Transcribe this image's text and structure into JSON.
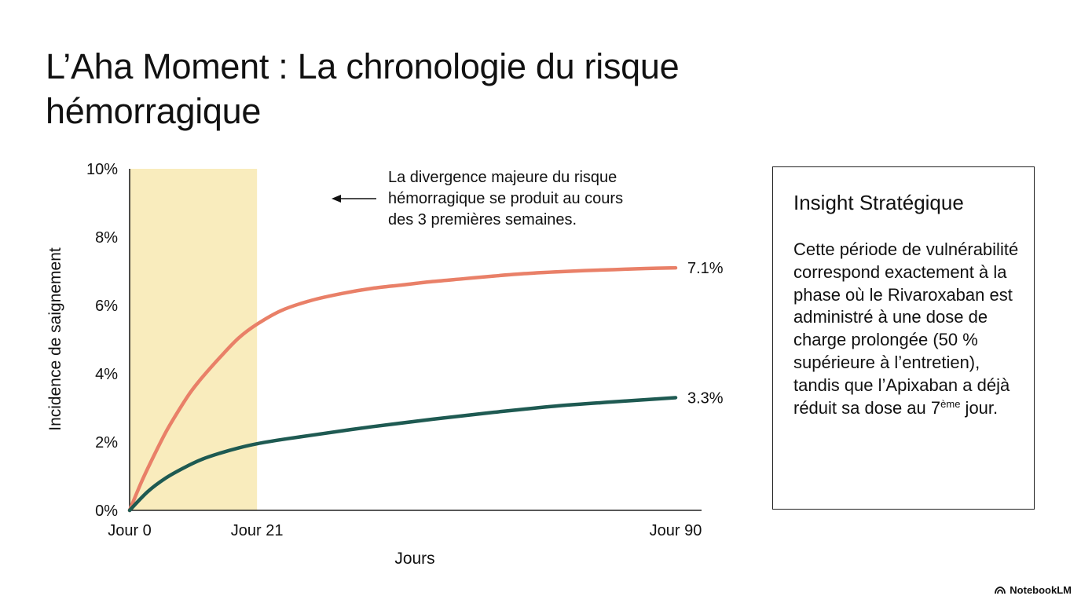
{
  "title": "L’Aha Moment : La chronologie du risque hémorragique",
  "chart_data": {
    "type": "line",
    "xlabel": "Jours",
    "ylabel": "Incidence de saignement",
    "xlim": [
      0,
      90
    ],
    "ylim": [
      0,
      10
    ],
    "x_ticks": [
      {
        "value": 0,
        "label": "Jour 0"
      },
      {
        "value": 21,
        "label": "Jour 21"
      },
      {
        "value": 90,
        "label": "Jour 90"
      }
    ],
    "y_ticks": [
      {
        "value": 0,
        "label": "0%"
      },
      {
        "value": 2,
        "label": "2%"
      },
      {
        "value": 4,
        "label": "4%"
      },
      {
        "value": 6,
        "label": "6%"
      },
      {
        "value": 8,
        "label": "8%"
      },
      {
        "value": 10,
        "label": "10%"
      }
    ],
    "highlight_region": {
      "x_start": 0,
      "x_end": 21,
      "color": "#f9ecbd"
    },
    "series": [
      {
        "name": "Rivaroxaban",
        "color": "#e98068",
        "end_label": "7.1%",
        "x": [
          0,
          2,
          4,
          6,
          8,
          10,
          12,
          15,
          18,
          21,
          25,
          30,
          35,
          40,
          45,
          50,
          55,
          60,
          65,
          70,
          75,
          80,
          85,
          90
        ],
        "values": [
          0,
          0.85,
          1.6,
          2.3,
          2.9,
          3.45,
          3.9,
          4.5,
          5.05,
          5.45,
          5.85,
          6.15,
          6.35,
          6.5,
          6.6,
          6.7,
          6.78,
          6.86,
          6.93,
          6.98,
          7.02,
          7.05,
          7.08,
          7.1
        ]
      },
      {
        "name": "Apixaban",
        "color": "#1e5a52",
        "end_label": "3.3%",
        "x": [
          0,
          3,
          6,
          9,
          12,
          15,
          18,
          21,
          25,
          30,
          40,
          50,
          60,
          70,
          80,
          90
        ],
        "values": [
          0,
          0.55,
          0.95,
          1.25,
          1.5,
          1.68,
          1.83,
          1.95,
          2.07,
          2.2,
          2.45,
          2.67,
          2.87,
          3.05,
          3.18,
          3.3
        ]
      }
    ],
    "annotation": {
      "lines": [
        "La divergence majeure du risque",
        "hémorragique se produit au cours",
        "des 3 premières semaines."
      ]
    }
  },
  "insight": {
    "title": "Insight Stratégique",
    "body_main": "Cette période de vulnérabilité correspond exactement à la phase où le Rivaroxaban est administré à une dose de charge prolongée (50 % supérieure à l’entretien), tandis que l’Apixaban a déjà réduit sa dose au 7",
    "body_sup": "ème",
    "body_end": " jour."
  },
  "brand": {
    "name": "NotebookLM"
  }
}
